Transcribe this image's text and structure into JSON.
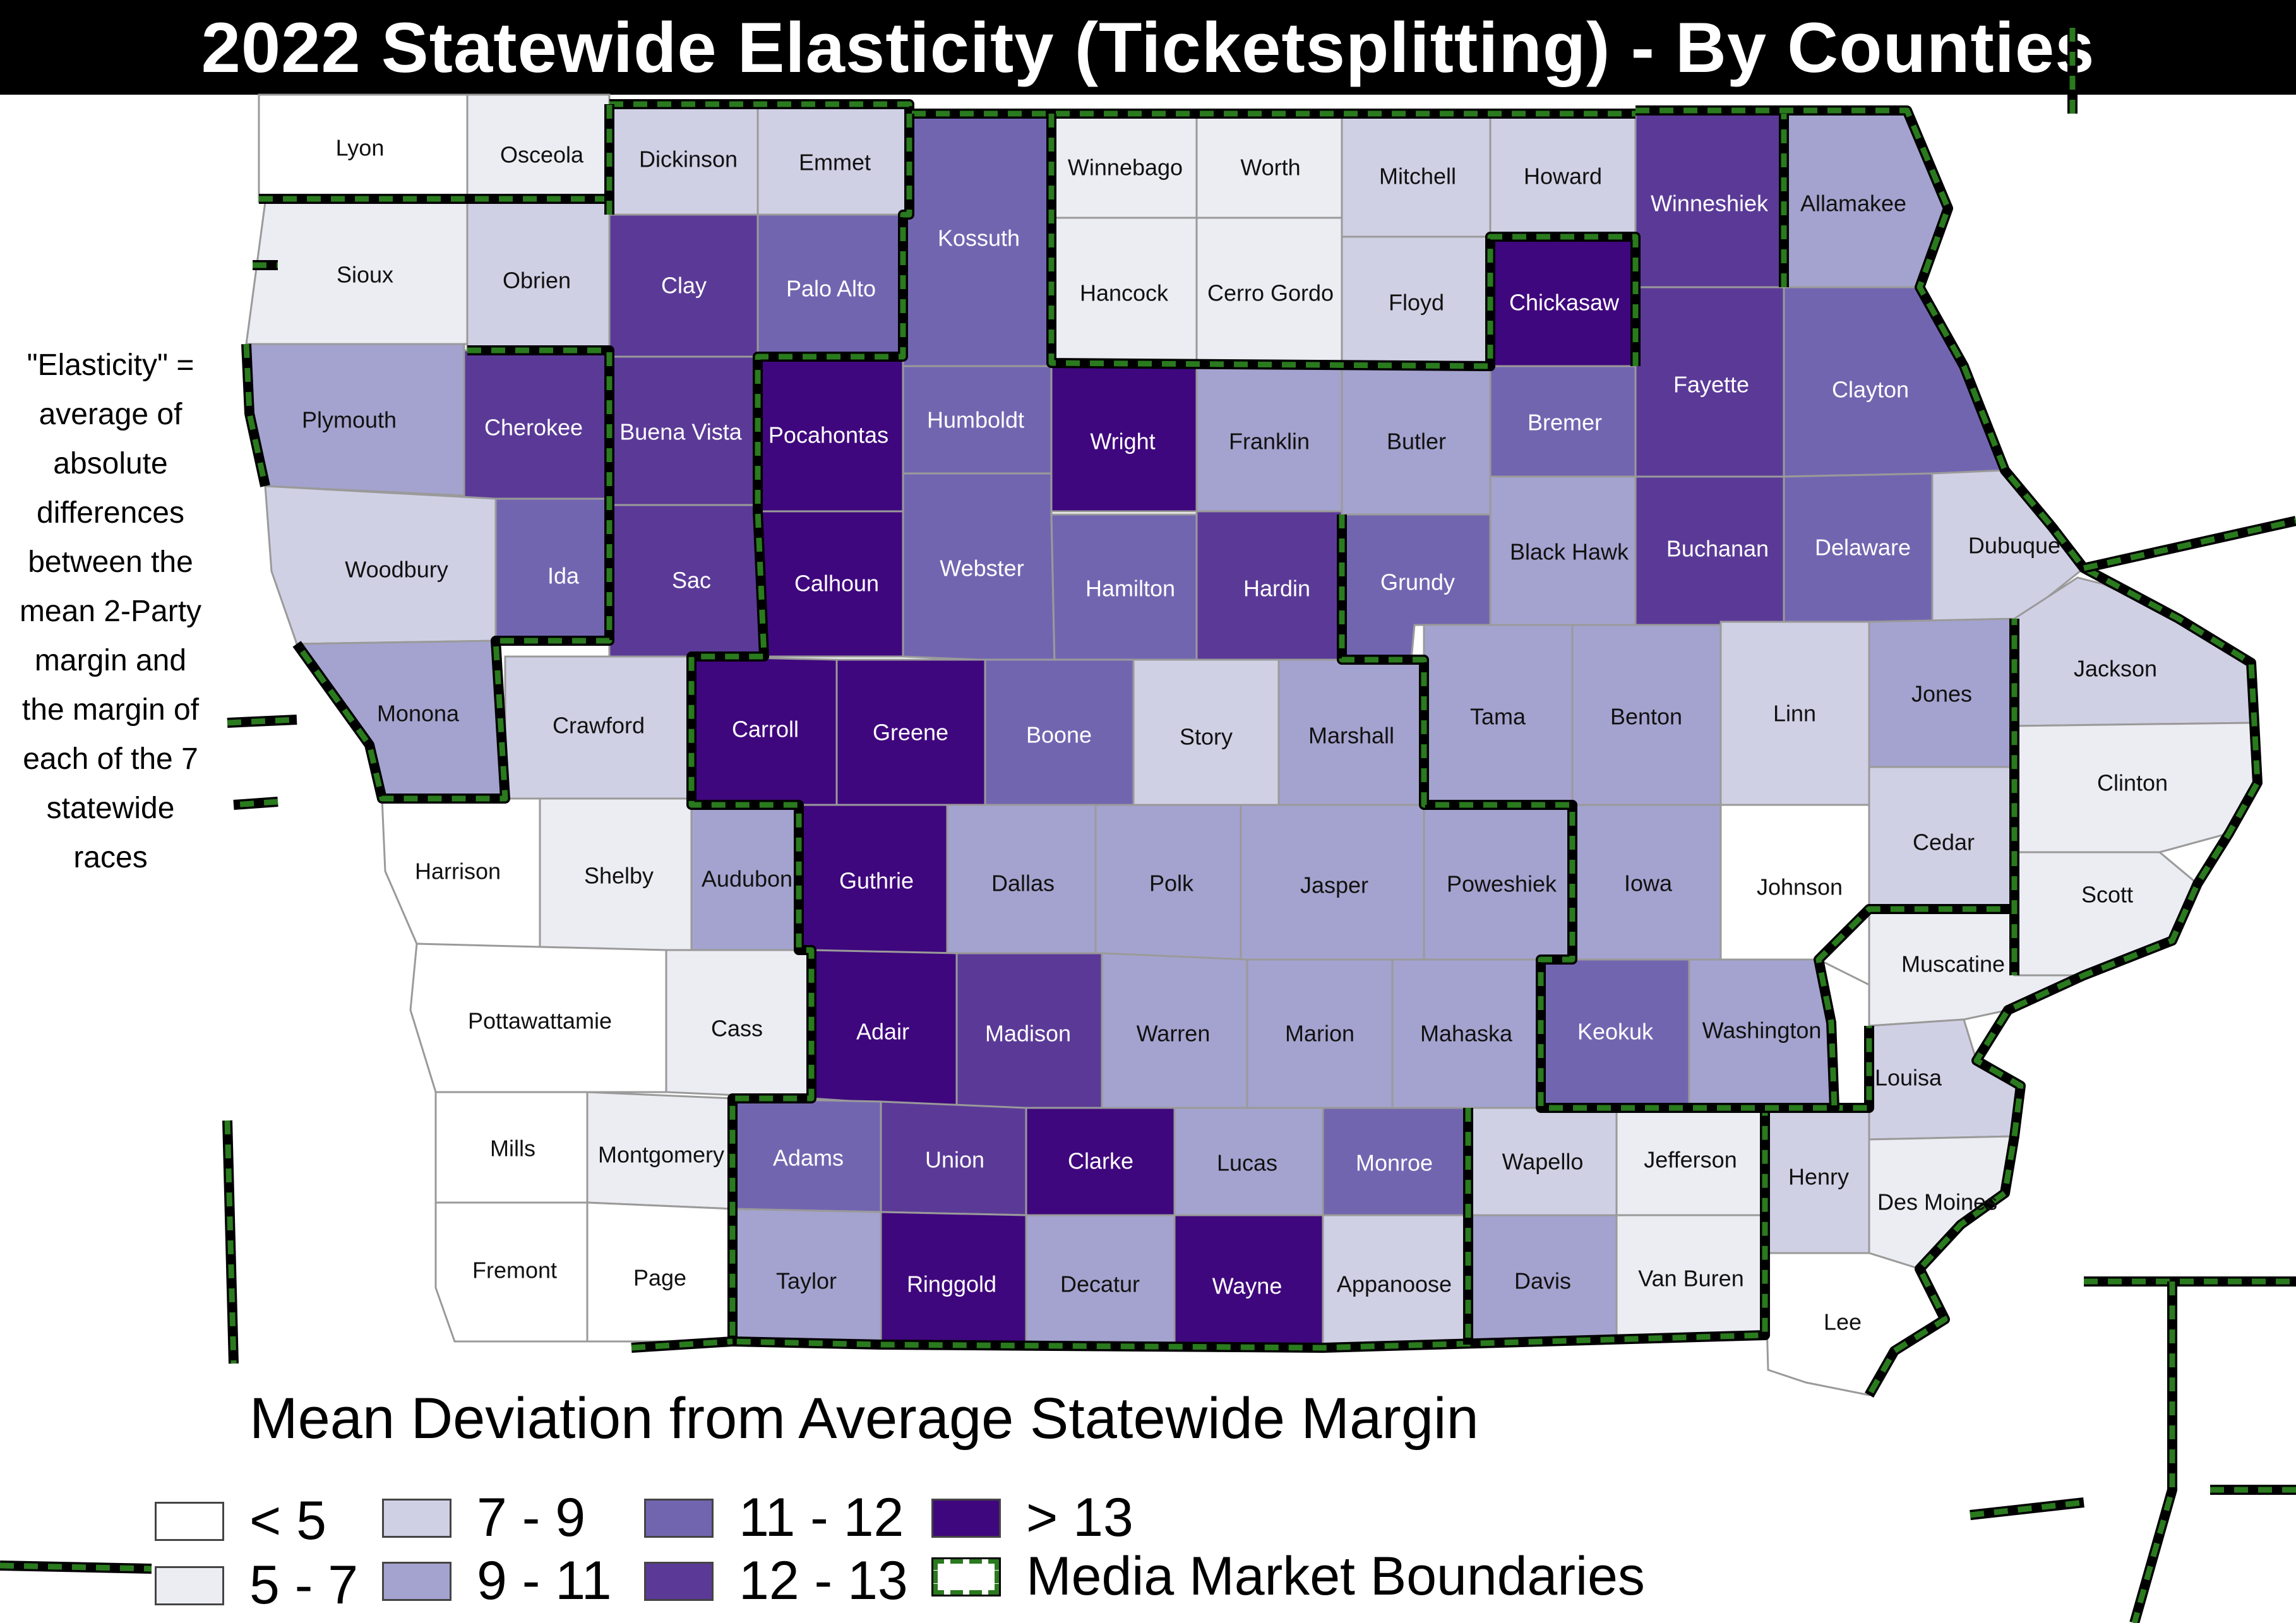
{
  "title": "2022 Statewide Elasticity (Ticketsplitting) - By Counties",
  "note_lines": [
    "\"Elasticity\" =",
    "average of",
    "absolute",
    "differences",
    "between the",
    "mean 2-Party",
    "margin and",
    "the margin of",
    "each of the 7",
    "statewide",
    "races"
  ],
  "legend": {
    "title": "Mean Deviation from Average Statewide Margin",
    "classes": [
      {
        "id": "c1",
        "label": "< 5",
        "color": "#ffffff"
      },
      {
        "id": "c2",
        "label": "5 - 7",
        "color": "#ececf3"
      },
      {
        "id": "c3",
        "label": "7 - 9",
        "color": "#d0d0e5"
      },
      {
        "id": "c4",
        "label": "9 - 11",
        "color": "#a4a3cf"
      },
      {
        "id": "c5",
        "label": "11 - 12",
        "color": "#7265b0"
      },
      {
        "id": "c6",
        "label": "12 - 13",
        "color": "#5b3a97"
      },
      {
        "id": "c7",
        "label": "> 13",
        "color": "#3f077d"
      }
    ],
    "boundary_label": "Media Market Boundaries",
    "boundary_color": "#2a7a1e"
  },
  "counties": [
    {
      "name": "Lyon",
      "cls": "c1"
    },
    {
      "name": "Osceola",
      "cls": "c2"
    },
    {
      "name": "Dickinson",
      "cls": "c3"
    },
    {
      "name": "Emmet",
      "cls": "c3"
    },
    {
      "name": "Kossuth",
      "cls": "c5"
    },
    {
      "name": "Winnebago",
      "cls": "c2"
    },
    {
      "name": "Worth",
      "cls": "c2"
    },
    {
      "name": "Mitchell",
      "cls": "c3"
    },
    {
      "name": "Howard",
      "cls": "c3"
    },
    {
      "name": "Winneshiek",
      "cls": "c6"
    },
    {
      "name": "Allamakee",
      "cls": "c4"
    },
    {
      "name": "Sioux",
      "cls": "c2"
    },
    {
      "name": "Obrien",
      "cls": "c3"
    },
    {
      "name": "Clay",
      "cls": "c6"
    },
    {
      "name": "Palo Alto",
      "cls": "c5"
    },
    {
      "name": "Hancock",
      "cls": "c2"
    },
    {
      "name": "Cerro Gordo",
      "cls": "c2"
    },
    {
      "name": "Floyd",
      "cls": "c3"
    },
    {
      "name": "Chickasaw",
      "cls": "c7"
    },
    {
      "name": "Fayette",
      "cls": "c6"
    },
    {
      "name": "Clayton",
      "cls": "c5"
    },
    {
      "name": "Plymouth",
      "cls": "c4"
    },
    {
      "name": "Cherokee",
      "cls": "c6"
    },
    {
      "name": "Buena Vista",
      "cls": "c6"
    },
    {
      "name": "Pocahontas",
      "cls": "c7"
    },
    {
      "name": "Humboldt",
      "cls": "c5"
    },
    {
      "name": "Wright",
      "cls": "c7"
    },
    {
      "name": "Franklin",
      "cls": "c4"
    },
    {
      "name": "Butler",
      "cls": "c4"
    },
    {
      "name": "Bremer",
      "cls": "c5"
    },
    {
      "name": "Woodbury",
      "cls": "c3"
    },
    {
      "name": "Ida",
      "cls": "c5"
    },
    {
      "name": "Sac",
      "cls": "c6"
    },
    {
      "name": "Calhoun",
      "cls": "c7"
    },
    {
      "name": "Webster",
      "cls": "c5"
    },
    {
      "name": "Hamilton",
      "cls": "c5"
    },
    {
      "name": "Hardin",
      "cls": "c6"
    },
    {
      "name": "Grundy",
      "cls": "c5"
    },
    {
      "name": "Black Hawk",
      "cls": "c4"
    },
    {
      "name": "Buchanan",
      "cls": "c6"
    },
    {
      "name": "Delaware",
      "cls": "c5"
    },
    {
      "name": "Dubuque",
      "cls": "c3"
    },
    {
      "name": "Monona",
      "cls": "c4"
    },
    {
      "name": "Crawford",
      "cls": "c3"
    },
    {
      "name": "Carroll",
      "cls": "c7"
    },
    {
      "name": "Greene",
      "cls": "c7"
    },
    {
      "name": "Boone",
      "cls": "c5"
    },
    {
      "name": "Story",
      "cls": "c3"
    },
    {
      "name": "Marshall",
      "cls": "c4"
    },
    {
      "name": "Tama",
      "cls": "c4"
    },
    {
      "name": "Benton",
      "cls": "c4"
    },
    {
      "name": "Linn",
      "cls": "c3"
    },
    {
      "name": "Jones",
      "cls": "c4"
    },
    {
      "name": "Jackson",
      "cls": "c3"
    },
    {
      "name": "Clinton",
      "cls": "c2"
    },
    {
      "name": "Harrison",
      "cls": "c1"
    },
    {
      "name": "Shelby",
      "cls": "c2"
    },
    {
      "name": "Audubon",
      "cls": "c4"
    },
    {
      "name": "Guthrie",
      "cls": "c7"
    },
    {
      "name": "Dallas",
      "cls": "c4"
    },
    {
      "name": "Polk",
      "cls": "c4"
    },
    {
      "name": "Jasper",
      "cls": "c4"
    },
    {
      "name": "Poweshiek",
      "cls": "c4"
    },
    {
      "name": "Iowa",
      "cls": "c4"
    },
    {
      "name": "Johnson",
      "cls": "c1"
    },
    {
      "name": "Cedar",
      "cls": "c3"
    },
    {
      "name": "Scott",
      "cls": "c2"
    },
    {
      "name": "Pottawattamie",
      "cls": "c1"
    },
    {
      "name": "Cass",
      "cls": "c2"
    },
    {
      "name": "Adair",
      "cls": "c7"
    },
    {
      "name": "Madison",
      "cls": "c6"
    },
    {
      "name": "Warren",
      "cls": "c4"
    },
    {
      "name": "Marion",
      "cls": "c4"
    },
    {
      "name": "Mahaska",
      "cls": "c4"
    },
    {
      "name": "Keokuk",
      "cls": "c5"
    },
    {
      "name": "Washington",
      "cls": "c4"
    },
    {
      "name": "Muscatine",
      "cls": "c2"
    },
    {
      "name": "Louisa",
      "cls": "c3"
    },
    {
      "name": "Mills",
      "cls": "c1"
    },
    {
      "name": "Montgomery",
      "cls": "c2"
    },
    {
      "name": "Adams",
      "cls": "c5"
    },
    {
      "name": "Union",
      "cls": "c6"
    },
    {
      "name": "Clarke",
      "cls": "c7"
    },
    {
      "name": "Lucas",
      "cls": "c4"
    },
    {
      "name": "Monroe",
      "cls": "c5"
    },
    {
      "name": "Wapello",
      "cls": "c3"
    },
    {
      "name": "Jefferson",
      "cls": "c2"
    },
    {
      "name": "Henry",
      "cls": "c3"
    },
    {
      "name": "Des Moines",
      "cls": "c2"
    },
    {
      "name": "Fremont",
      "cls": "c1"
    },
    {
      "name": "Page",
      "cls": "c1"
    },
    {
      "name": "Taylor",
      "cls": "c4"
    },
    {
      "name": "Ringgold",
      "cls": "c7"
    },
    {
      "name": "Decatur",
      "cls": "c4"
    },
    {
      "name": "Wayne",
      "cls": "c7"
    },
    {
      "name": "Appanoose",
      "cls": "c3"
    },
    {
      "name": "Davis",
      "cls": "c4"
    },
    {
      "name": "Van Buren",
      "cls": "c2"
    },
    {
      "name": "Lee",
      "cls": "c1"
    }
  ]
}
